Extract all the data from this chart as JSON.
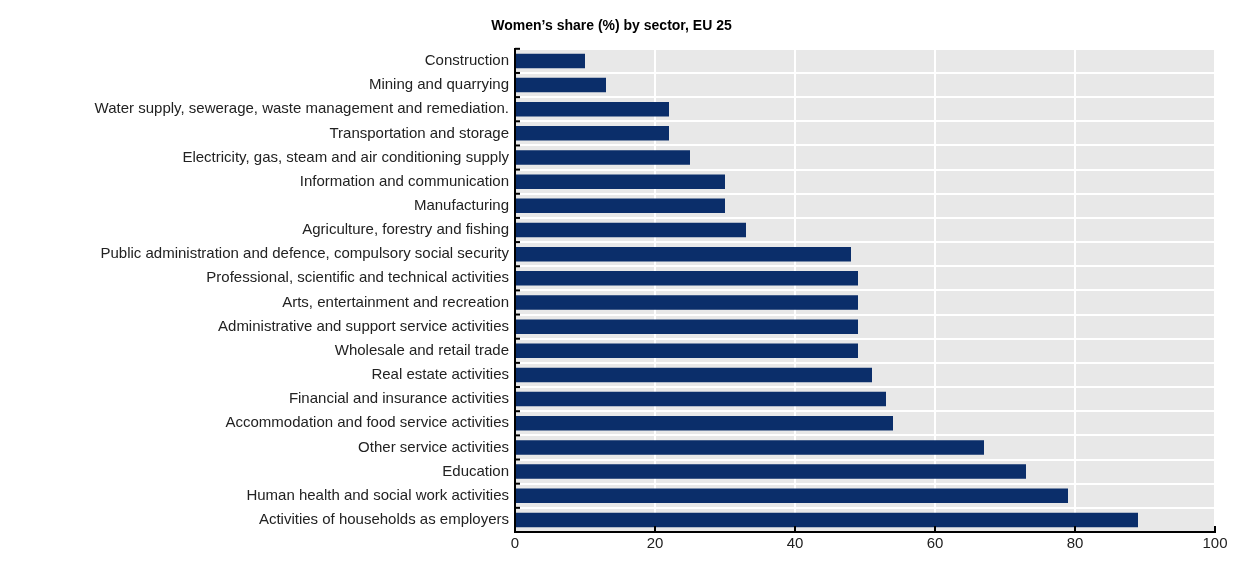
{
  "chart_data": {
    "type": "bar",
    "orientation": "horizontal",
    "title": "Women’s share (%) by sector, EU 25",
    "categories": [
      "Construction",
      "Mining and quarrying",
      "Water supply, sewerage, waste management and remediation.",
      "Transportation and storage",
      "Electricity, gas, steam and air conditioning supply",
      "Information and communication",
      "Manufacturing",
      "Agriculture, forestry and fishing",
      "Public administration and defence, compulsory social security",
      "Professional, scientific and technical activities",
      "Arts, entertainment and recreation",
      "Administrative and support service activities",
      "Wholesale and retail trade",
      "Real estate activities",
      "Financial and insurance activities",
      "Accommodation and food service activities",
      "Other service activities",
      "Education",
      "Human health and social work activities",
      "Activities of households as employers"
    ],
    "values": [
      10,
      13,
      22,
      22,
      25,
      30,
      30,
      33,
      48,
      49,
      49,
      49,
      49,
      51,
      53,
      54,
      67,
      73,
      79,
      89
    ],
    "color": "#0b2e6a",
    "xlim": [
      0,
      100
    ],
    "xticks": [
      0,
      20,
      40,
      60,
      80,
      100
    ],
    "grid": true
  }
}
